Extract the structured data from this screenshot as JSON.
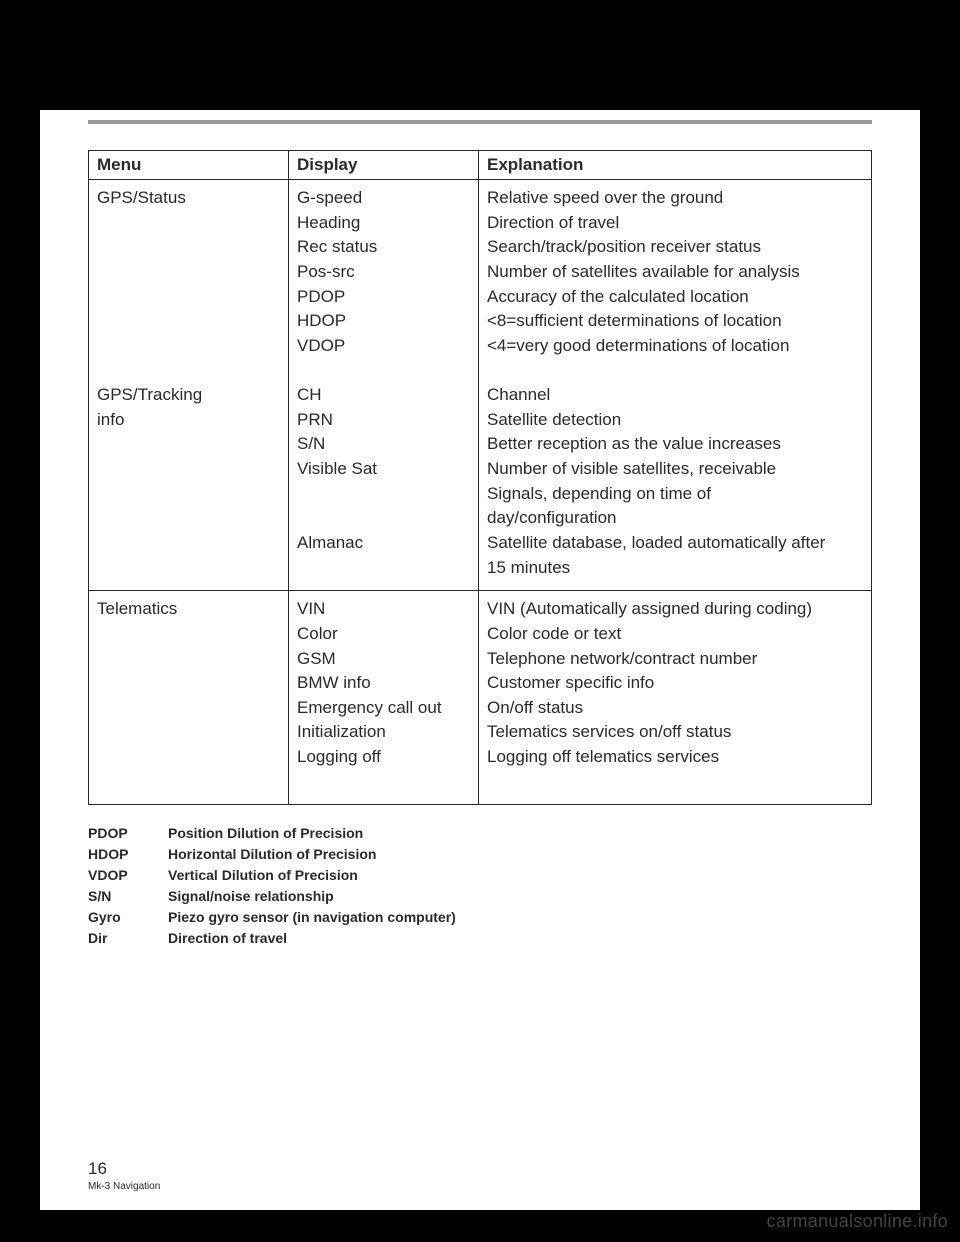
{
  "table": {
    "headers": {
      "menu": "Menu",
      "display": "Display",
      "explanation": "Explanation"
    },
    "rows": [
      {
        "menu": [
          "GPS/Status",
          "",
          "",
          "",
          "",
          "",
          "",
          "",
          "GPS/Tracking",
          "info",
          "",
          "",
          "",
          "",
          ""
        ],
        "display": [
          "G-speed",
          "Heading",
          "Rec status",
          "Pos-src",
          "PDOP",
          "HDOP",
          "VDOP",
          "",
          "CH",
          "PRN",
          "S/N",
          "Visible Sat",
          "",
          "",
          "Almanac"
        ],
        "explanation": [
          "Relative speed over the ground",
          "Direction of travel",
          "Search/track/position receiver status",
          "Number of satellites available for analysis",
          "Accuracy of the calculated location",
          "<8=sufficient determinations of location",
          "<4=very good determinations of location",
          "",
          "Channel",
          "Satellite detection",
          "Better reception as the value increases",
          "Number of visible satellites, receivable",
          "Signals, depending on time of",
          "day/configuration",
          "Satellite database, loaded automatically after",
          "15 minutes"
        ]
      },
      {
        "menu": [
          "Telematics"
        ],
        "display": [
          "VIN",
          "Color",
          "GSM",
          "BMW info",
          "Emergency call out",
          "Initialization",
          "Logging off",
          ""
        ],
        "explanation": [
          "VIN (Automatically assigned during coding)",
          "Color code or text",
          "Telephone network/contract number",
          "Customer specific info",
          "On/off status",
          "Telematics services on/off status",
          "Logging off telematics services",
          ""
        ]
      }
    ]
  },
  "glossary": [
    {
      "term": "PDOP",
      "def": "Position Dilution of Precision"
    },
    {
      "term": "HDOP",
      "def": "Horizontal Dilution of Precision"
    },
    {
      "term": "VDOP",
      "def": "Vertical Dilution of Precision"
    },
    {
      "term": "S/N",
      "def": "Signal/noise relationship"
    },
    {
      "term": "Gyro",
      "def": "Piezo gyro sensor (in navigation computer)"
    },
    {
      "term": "Dir",
      "def": "Direction of travel"
    }
  ],
  "footer": {
    "page": "16",
    "doc": "Mk-3 Navigation"
  },
  "watermark": "carmanualsonline.info",
  "colors": {
    "page_bg": "#ffffff",
    "outer_bg": "#000000",
    "rule": "#9a9a9a",
    "text": "#2a2a2a",
    "watermark": "rgba(120,120,120,0.55)"
  }
}
